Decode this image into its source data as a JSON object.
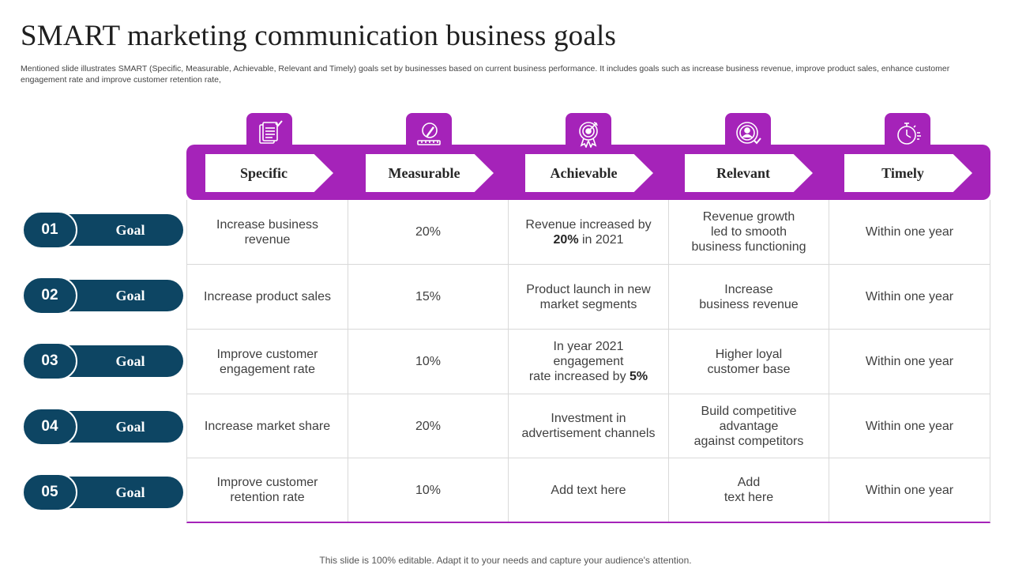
{
  "title": "SMART marketing communication business goals",
  "subtitle": "Mentioned slide illustrates SMART (Specific, Measurable, Achievable, Relevant and Timely) goals set by businesses based on current business performance. It includes goals such as increase business revenue, improve product sales, enhance customer engagement rate and improve customer retention rate,",
  "accent_color": "#a523b9",
  "goal_color": "#0d4563",
  "columns": [
    {
      "label": "Specific",
      "icon": "checklist-icon"
    },
    {
      "label": "Measurable",
      "icon": "pencil-ruler-icon"
    },
    {
      "label": "Achievable",
      "icon": "award-target-icon"
    },
    {
      "label": "Relevant",
      "icon": "target-person-icon"
    },
    {
      "label": "Timely",
      "icon": "stopwatch-icon"
    }
  ],
  "goals": [
    {
      "number": "01",
      "label": "Goal"
    },
    {
      "number": "02",
      "label": "Goal"
    },
    {
      "number": "03",
      "label": "Goal"
    },
    {
      "number": "04",
      "label": "Goal"
    },
    {
      "number": "05",
      "label": "Goal"
    }
  ],
  "rows": [
    {
      "specific": [
        "Increase business",
        "revenue"
      ],
      "measurable": "20%",
      "achievable": {
        "l1": "Revenue increased by",
        "bold": "20%",
        "rest": " in 2021"
      },
      "relevant": [
        "Revenue growth",
        "led to smooth",
        "business functioning"
      ],
      "timely": "Within one year"
    },
    {
      "specific": [
        "Increase product sales"
      ],
      "measurable": "15%",
      "achievable_lines": [
        "Product launch  in new",
        "market segments"
      ],
      "relevant": [
        "Increase",
        "business revenue"
      ],
      "timely": "Within one year"
    },
    {
      "specific": [
        "Improve customer",
        "engagement rate"
      ],
      "measurable": "10%",
      "achievable": {
        "l1": "In year 2021 engagement",
        "pre": "rate increased by ",
        "bold": "5%"
      },
      "relevant": [
        "Higher loyal",
        "customer base"
      ],
      "timely": "Within one year"
    },
    {
      "specific": [
        "Increase  market share"
      ],
      "measurable": "20%",
      "achievable_lines": [
        "Investment  in",
        "advertisement channels"
      ],
      "relevant": [
        "Build competitive",
        "advantage",
        "against competitors"
      ],
      "timely": "Within one year"
    },
    {
      "specific": [
        "Improve customer",
        "retention rate"
      ],
      "measurable": "10%",
      "achievable_lines": [
        "Add text here"
      ],
      "relevant": [
        "Add",
        "text here"
      ],
      "timely": "Within one year"
    }
  ],
  "footer": "This slide is 100% editable. Adapt it to your needs and capture your audience's attention."
}
